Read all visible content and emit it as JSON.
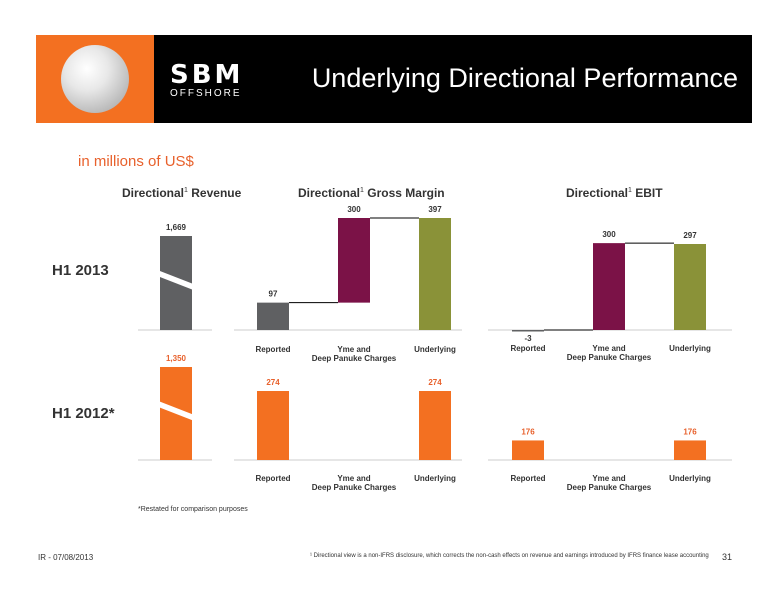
{
  "header": {
    "title": "Underlying Directional Performance",
    "brand": "SBM",
    "brand_sub": "OFFSHORE"
  },
  "units_label": "in millions of US$",
  "chart_titles": {
    "revenue": "Directional Revenue",
    "gross_margin": "Directional Gross Margin",
    "ebit": "Directional EBIT",
    "footnote_marker": "1"
  },
  "row_labels": {
    "h1_2013": "H1 2013",
    "h1_2012": "H1 2012*"
  },
  "footnotes": {
    "restated": "*Restated for comparison purposes",
    "ir_date": "IR - 07/08/2013",
    "directional_note": "¹ Directional view is a non-IFRS disclosure, which corrects the non-cash effects on revenue and earnings introduced by IFRS finance lease accounting",
    "page_number": "31"
  },
  "colors": {
    "grey": "#5f6062",
    "maroon": "#7b1247",
    "olive": "#8a9238",
    "orange": "#f37021",
    "label_dark": "#333333",
    "label_orange": "#e8612c"
  },
  "chart_data": [
    {
      "type": "bar",
      "id": "revenue_2013",
      "title": "Directional Revenue",
      "period": "H1 2013",
      "categories": [
        ""
      ],
      "values": [
        1669
      ],
      "labels": [
        "1,669"
      ],
      "axis_break": true
    },
    {
      "type": "bar",
      "id": "revenue_2012",
      "title": "Directional Revenue",
      "period": "H1 2012*",
      "categories": [
        ""
      ],
      "values": [
        1350
      ],
      "labels": [
        "1,350"
      ],
      "axis_break": true
    },
    {
      "type": "waterfall",
      "id": "gm_2013",
      "title": "Directional Gross Margin",
      "period": "H1 2013",
      "categories": [
        "Reported",
        "Yme and Deep Panuke Charges",
        "Underlying"
      ],
      "values": [
        97,
        300,
        397
      ],
      "labels": [
        "97",
        "300",
        "397"
      ],
      "ylim": [
        0,
        397
      ]
    },
    {
      "type": "waterfall",
      "id": "ebit_2013",
      "title": "Directional EBIT",
      "period": "H1 2013",
      "categories": [
        "Reported",
        "Yme and Deep Panuke Charges",
        "Underlying"
      ],
      "values": [
        -3,
        300,
        297
      ],
      "labels": [
        "-3",
        "300",
        "297"
      ],
      "ylim": [
        0,
        297
      ]
    },
    {
      "type": "bar",
      "id": "gm_2012",
      "title": "Directional Gross Margin",
      "period": "H1 2012*",
      "categories": [
        "Reported",
        "Yme and Deep Panuke Charges",
        "Underlying"
      ],
      "values": [
        274,
        null,
        274
      ],
      "labels": [
        "274",
        "",
        "274"
      ],
      "ylim": [
        0,
        274
      ]
    },
    {
      "type": "bar",
      "id": "ebit_2012",
      "title": "Directional EBIT",
      "period": "H1 2012*",
      "categories": [
        "Reported",
        "Yme and Deep Panuke Charges",
        "Underlying"
      ],
      "values": [
        176,
        null,
        176
      ],
      "labels": [
        "176",
        "",
        "176"
      ],
      "ylim": [
        0,
        297
      ]
    }
  ]
}
